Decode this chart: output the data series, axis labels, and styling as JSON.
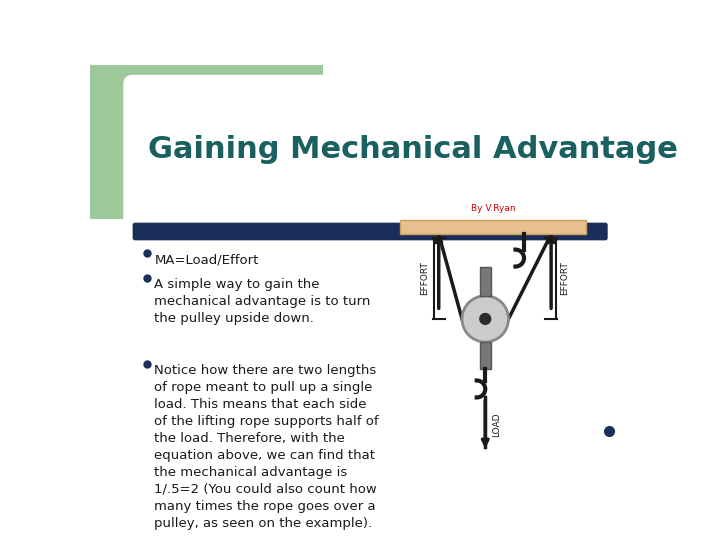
{
  "title": "Gaining Mechanical Advantage",
  "title_color": "#1a6060",
  "title_fontsize": 22,
  "bg_color": "#ffffff",
  "green_color": "#9dc899",
  "blue_bar_color": "#1a2e5a",
  "bullet_points": [
    "MA=Load/Effort",
    "A simple way to gain the\nmechanical advantage is to turn\nthe pulley upside down.",
    "Notice how there are two lengths\nof rope meant to pull up a single\nload. This means that each side\nof the lifting rope supports half of\nthe load. Therefore, with the\nequation above, we can find that\nthe mechanical advantage is\n1/.5=2 (You could also count how\nmany times the rope goes over a\npulley, as seen on the example)."
  ],
  "bullet_color": "#1a1a1a",
  "bullet_fontsize": 9.5,
  "dot_color": "#1a2e5a",
  "credit_text": "By V.Ryan",
  "credit_color": "#cc0000",
  "credit_fontsize": 6.5,
  "ceiling_color": "#e8c090",
  "ceiling_edge_color": "#c8a060",
  "rope_color": "#1a1a1a",
  "pulley_color": "#cccccc",
  "pulley_edge_color": "#888888",
  "hook_color": "#1a1a1a",
  "bracket_color": "#1a1a1a",
  "effort_text_color": "#1a1a1a",
  "load_text_color": "#1a1a1a",
  "connector_color": "#666666",
  "small_dot_color": "#1a2e5a"
}
